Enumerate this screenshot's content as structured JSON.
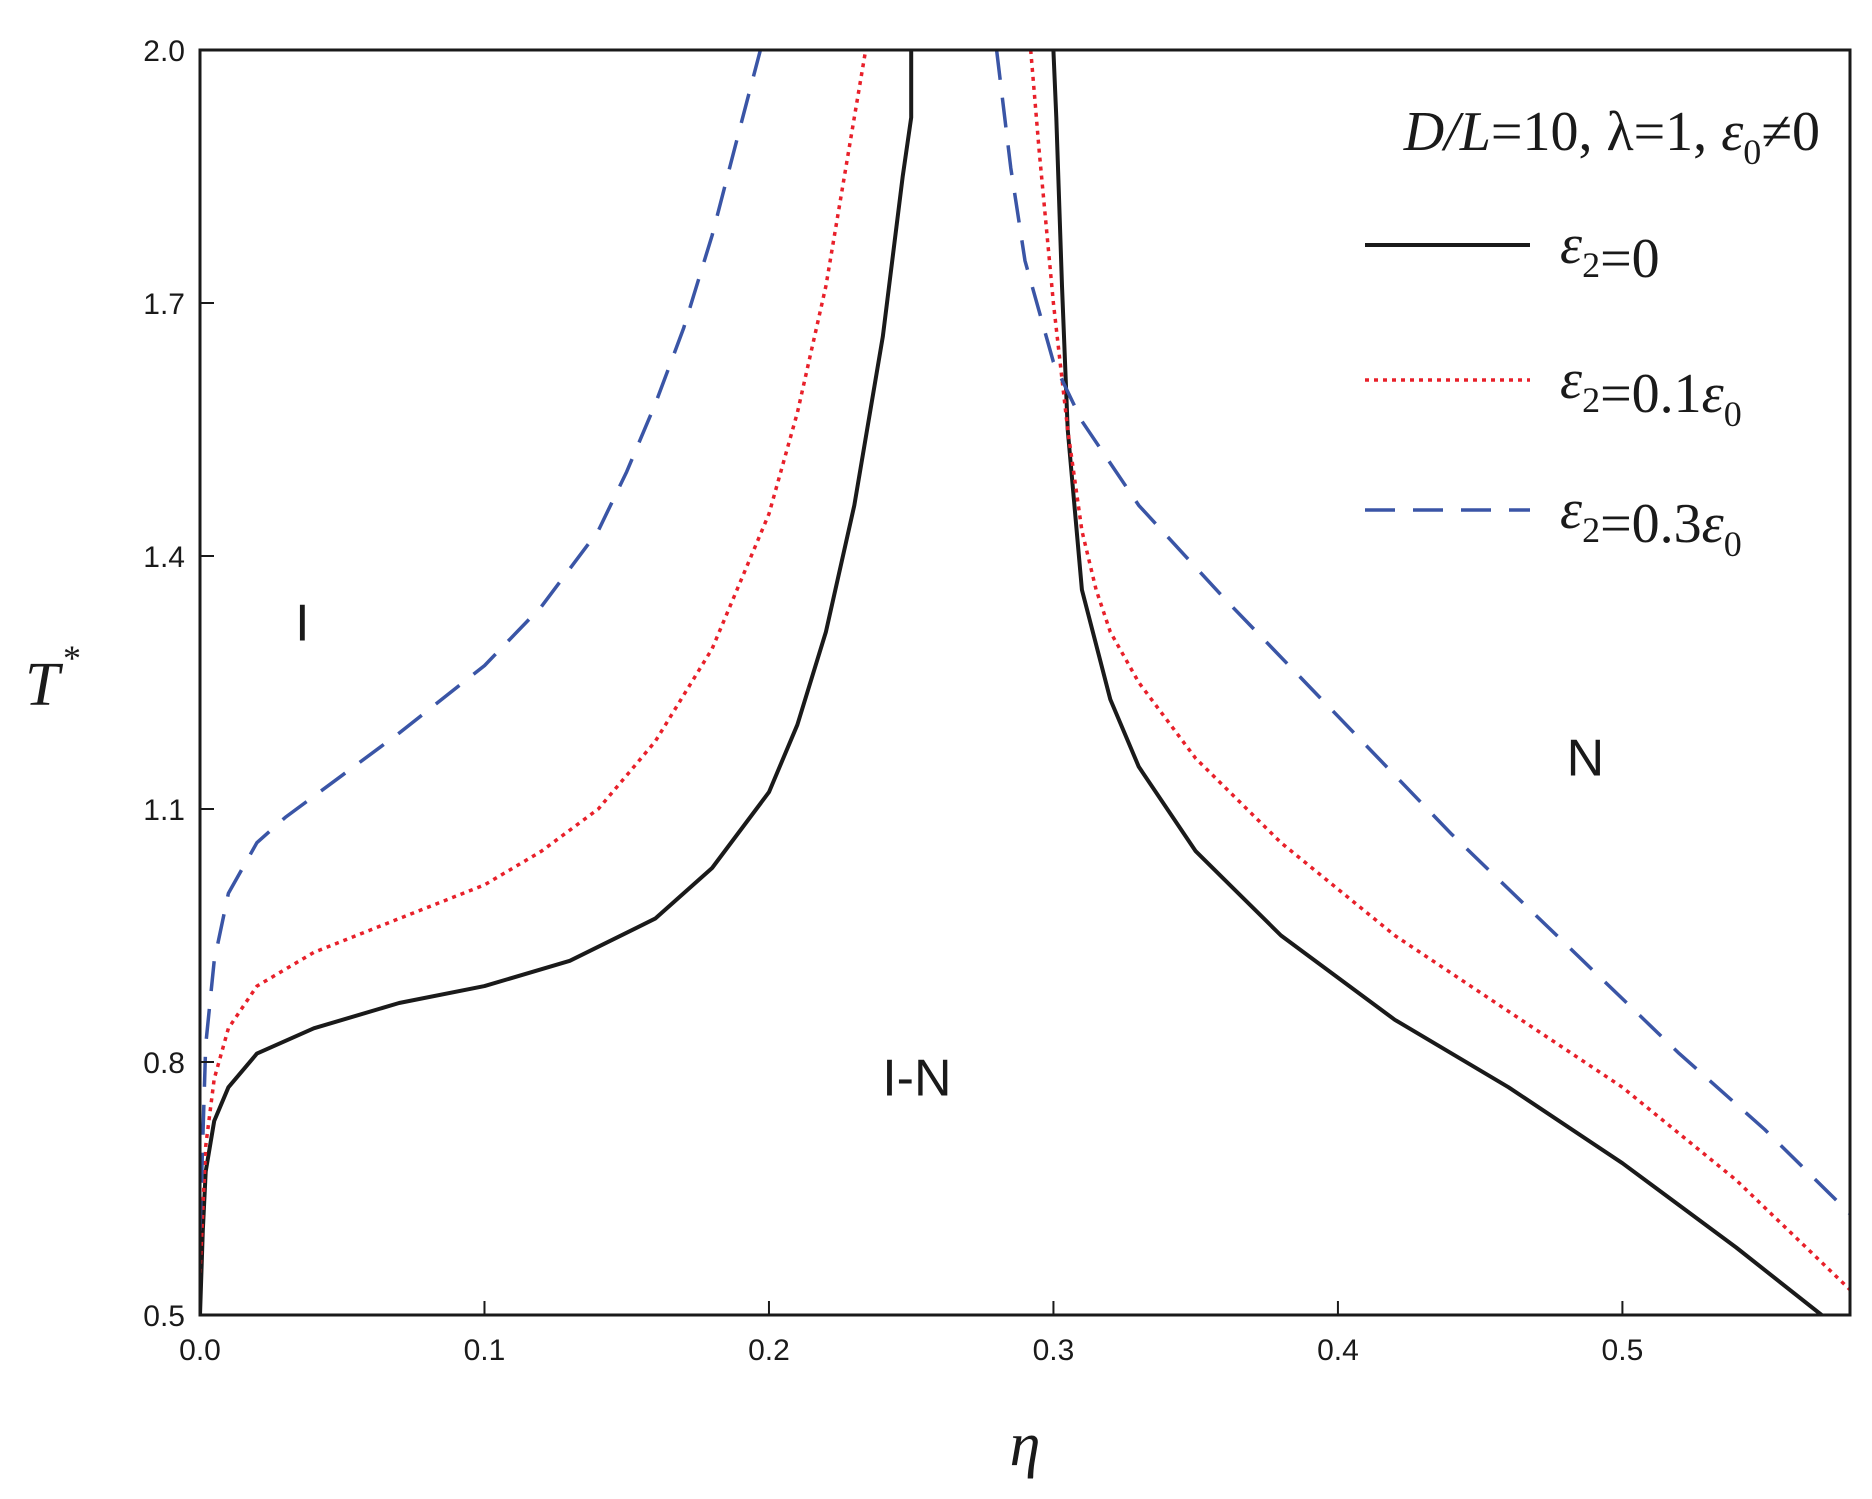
{
  "chart_data": {
    "type": "line",
    "xlabel": "η",
    "ylabel": "T*",
    "xlim": [
      0.0,
      0.58
    ],
    "ylim": [
      0.5,
      2.0
    ],
    "xticks": [
      "0.0",
      "0.1",
      "0.2",
      "0.3",
      "0.4",
      "0.5"
    ],
    "yticks": [
      "0.5",
      "0.8",
      "1.1",
      "1.4",
      "1.7",
      "2.0"
    ],
    "legend_title": "D/L=10, λ=1, ε0≠0",
    "legend_position": "top-right",
    "grid": false,
    "region_labels": [
      {
        "text": "I",
        "x": 0.036,
        "y": 1.3
      },
      {
        "text": "N",
        "x": 0.487,
        "y": 1.14
      },
      {
        "text": "I-N",
        "x": 0.252,
        "y": 0.76
      }
    ],
    "series": [
      {
        "name": "ε2=0",
        "color": "#1a1a1a",
        "dash": "solid",
        "left_branch": {
          "x": [
            0.0,
            0.001,
            0.002,
            0.005,
            0.01,
            0.02,
            0.04,
            0.07,
            0.1,
            0.13,
            0.16,
            0.18,
            0.2,
            0.21,
            0.22,
            0.23,
            0.24,
            0.247,
            0.25,
            0.25
          ],
          "y": [
            0.5,
            0.6,
            0.67,
            0.73,
            0.77,
            0.81,
            0.84,
            0.87,
            0.89,
            0.92,
            0.97,
            1.03,
            1.12,
            1.2,
            1.31,
            1.46,
            1.66,
            1.85,
            1.92,
            2.0
          ]
        },
        "right_branch": {
          "x": [
            0.3,
            0.301,
            0.303,
            0.305,
            0.31,
            0.32,
            0.33,
            0.35,
            0.38,
            0.42,
            0.46,
            0.5,
            0.54,
            0.57
          ],
          "y": [
            2.0,
            1.92,
            1.72,
            1.55,
            1.36,
            1.23,
            1.15,
            1.05,
            0.95,
            0.85,
            0.77,
            0.68,
            0.58,
            0.5
          ]
        }
      },
      {
        "name": "ε2=0.1ε0",
        "color": "#e8202a",
        "dash": "dotted",
        "left_branch": {
          "x": [
            0.0,
            0.002,
            0.005,
            0.01,
            0.02,
            0.04,
            0.07,
            0.1,
            0.12,
            0.14,
            0.16,
            0.18,
            0.2,
            0.21,
            0.22,
            0.23,
            0.234
          ],
          "y": [
            0.55,
            0.7,
            0.78,
            0.84,
            0.89,
            0.93,
            0.97,
            1.01,
            1.05,
            1.1,
            1.18,
            1.29,
            1.45,
            1.57,
            1.72,
            1.92,
            2.0
          ]
        },
        "right_branch": {
          "x": [
            0.292,
            0.295,
            0.3,
            0.305,
            0.31,
            0.315,
            0.32,
            0.33,
            0.35,
            0.38,
            0.42,
            0.46,
            0.5,
            0.54,
            0.58
          ],
          "y": [
            2.0,
            1.88,
            1.7,
            1.55,
            1.43,
            1.36,
            1.31,
            1.25,
            1.16,
            1.06,
            0.95,
            0.86,
            0.77,
            0.66,
            0.53
          ]
        }
      },
      {
        "name": "ε2=0.3ε0",
        "color": "#3a55a6",
        "dash": "dashed",
        "left_branch": {
          "x": [
            0.0,
            0.002,
            0.005,
            0.01,
            0.02,
            0.03,
            0.05,
            0.07,
            0.1,
            0.12,
            0.14,
            0.15,
            0.16,
            0.17,
            0.18,
            0.19,
            0.197
          ],
          "y": [
            0.6,
            0.82,
            0.92,
            1.0,
            1.06,
            1.09,
            1.14,
            1.19,
            1.27,
            1.34,
            1.43,
            1.5,
            1.58,
            1.67,
            1.78,
            1.91,
            2.0
          ]
        },
        "right_branch": {
          "x": [
            0.28,
            0.285,
            0.29,
            0.3,
            0.31,
            0.33,
            0.36,
            0.4,
            0.44,
            0.48,
            0.52,
            0.55,
            0.58
          ],
          "y": [
            2.0,
            1.86,
            1.75,
            1.63,
            1.56,
            1.46,
            1.35,
            1.21,
            1.07,
            0.94,
            0.81,
            0.72,
            0.62
          ]
        }
      }
    ]
  }
}
